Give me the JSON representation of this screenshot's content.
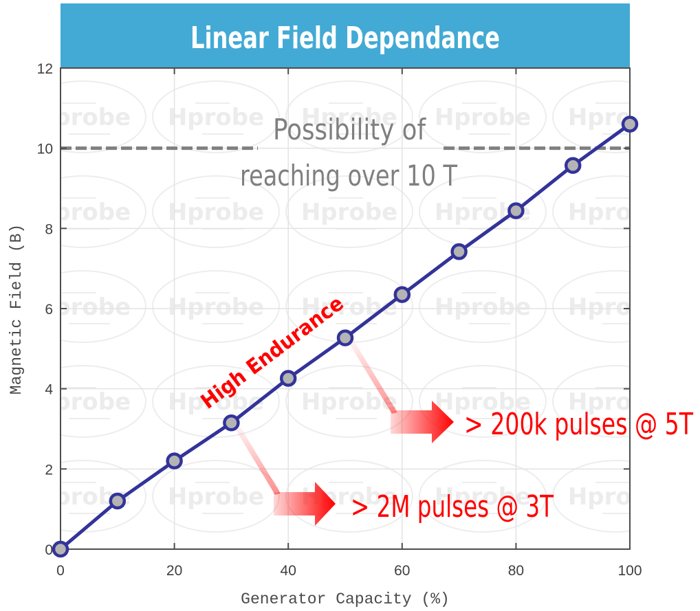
{
  "chart_data": {
    "type": "line",
    "title": "Linear Field Dependance",
    "xlabel": "Generator Capacity (%)",
    "ylabel": "Magnetic Field (B)",
    "xlim": [
      0,
      100
    ],
    "ylim": [
      0,
      12
    ],
    "xticks": [
      0,
      20,
      40,
      60,
      80,
      100
    ],
    "yticks": [
      0,
      2,
      4,
      6,
      8,
      10,
      12
    ],
    "grid": true,
    "series": [
      {
        "name": "Magnetic Field",
        "color": "#33339a",
        "marker_fill": "#b4b4b4",
        "x": [
          0,
          10,
          20,
          30,
          40,
          50,
          60,
          70,
          80,
          90,
          100
        ],
        "y": [
          0,
          1.2,
          2.2,
          3.15,
          4.26,
          5.27,
          6.35,
          7.42,
          8.44,
          9.57,
          10.6
        ]
      }
    ],
    "reference_line": {
      "y": 10,
      "style": "dashed",
      "color": "#808080"
    },
    "annotations": [
      {
        "text_lines": [
          "Possibility of",
          "reaching over 10 T"
        ],
        "color": "#7f7f7f"
      },
      {
        "text": "High Endurance",
        "color": "#ff0000"
      },
      {
        "text": "> 200k pulses @ 5T",
        "color": "#ff0000",
        "from_x": 50
      },
      {
        "text": "> 2M pulses @ 3T",
        "color": "#ff0000",
        "from_x": 30
      }
    ],
    "watermark": "Hprobe"
  },
  "colors": {
    "banner": "#42aad4",
    "banner_text": "#ffffff",
    "axis": "#4d4d4d",
    "grid": "#e3e3e3"
  }
}
